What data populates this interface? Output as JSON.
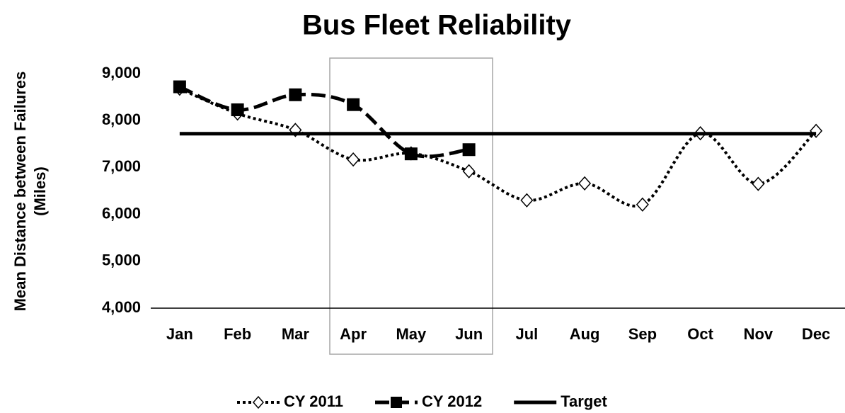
{
  "chart_data": {
    "type": "line",
    "title": "Bus Fleet Reliability",
    "y_label": [
      "Mean Distance between Failures",
      "(Miles)"
    ],
    "categories": [
      "Jan",
      "Feb",
      "Mar",
      "Apr",
      "May",
      "Jun",
      "Jul",
      "Aug",
      "Sep",
      "Oct",
      "Nov",
      "Dec"
    ],
    "series": [
      {
        "name": "CY 2011",
        "color": "#000000",
        "dash": "dotted",
        "marker": "diamond",
        "smooth": true,
        "values": [
          8680,
          8150,
          7800,
          7170,
          7300,
          6920,
          6300,
          6660,
          6210,
          7730,
          6650,
          7780
        ]
      },
      {
        "name": "CY 2012",
        "color": "#000000",
        "dash": "dashed",
        "marker": "square",
        "smooth": true,
        "values": [
          8720,
          8230,
          8550,
          8340,
          7290,
          7380,
          null,
          null,
          null,
          null,
          null,
          null
        ]
      },
      {
        "name": "Target",
        "color": "#000000",
        "dash": "solid",
        "marker": "none",
        "smooth": false,
        "values": [
          7720,
          7720,
          7720,
          7720,
          7720,
          7720,
          7720,
          7720,
          7720,
          7720,
          7720,
          7720
        ]
      }
    ],
    "ylim": [
      4000,
      9000
    ],
    "yticks": [
      {
        "value": 4000,
        "label": "4,000"
      },
      {
        "value": 5000,
        "label": "5,000"
      },
      {
        "value": 6000,
        "label": "6,000"
      },
      {
        "value": 7000,
        "label": "7,000"
      },
      {
        "value": 8000,
        "label": "8,000"
      },
      {
        "value": 9000,
        "label": "9,000"
      }
    ],
    "grid": false,
    "legend": "bottom"
  }
}
